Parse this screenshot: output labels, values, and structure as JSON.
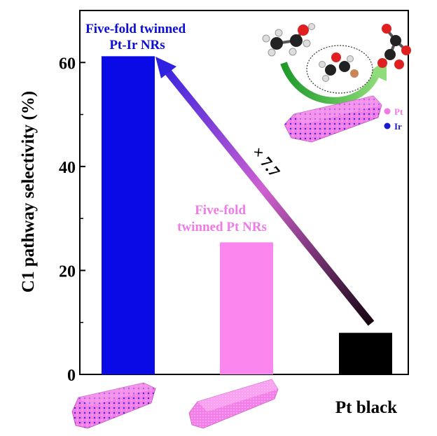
{
  "chart_data": {
    "type": "bar",
    "categories": [
      "Five-fold twinned Pt-Ir NRs",
      "Five-fold twinned Pt NRs",
      "Pt black"
    ],
    "values": [
      61.2,
      25.4,
      8.0
    ],
    "ylabel": "C1 pathway selectivity (%)",
    "xlabel": "",
    "ylim": [
      0,
      70
    ],
    "yticks": [
      0,
      20,
      40,
      60
    ],
    "grid": false,
    "bar_colors": [
      "#0a0ae6",
      "#fb86ee",
      "#000000"
    ],
    "bar_labels": [
      {
        "lines": [
          "Five-fold twinned",
          "Pt-Ir NRs"
        ],
        "color": "#0d0dd8"
      },
      {
        "lines": [
          "Five-fold",
          "twinned Pt NRs"
        ],
        "color": "#f07ae6"
      },
      {
        "lines": [
          "Pt black"
        ],
        "color": "#000000"
      }
    ],
    "arrow_label": "× 7.7",
    "legend": [
      {
        "label": "Pt",
        "color": "#f07ae6"
      },
      {
        "label": "Ir",
        "color": "#1a1ad0"
      }
    ]
  }
}
